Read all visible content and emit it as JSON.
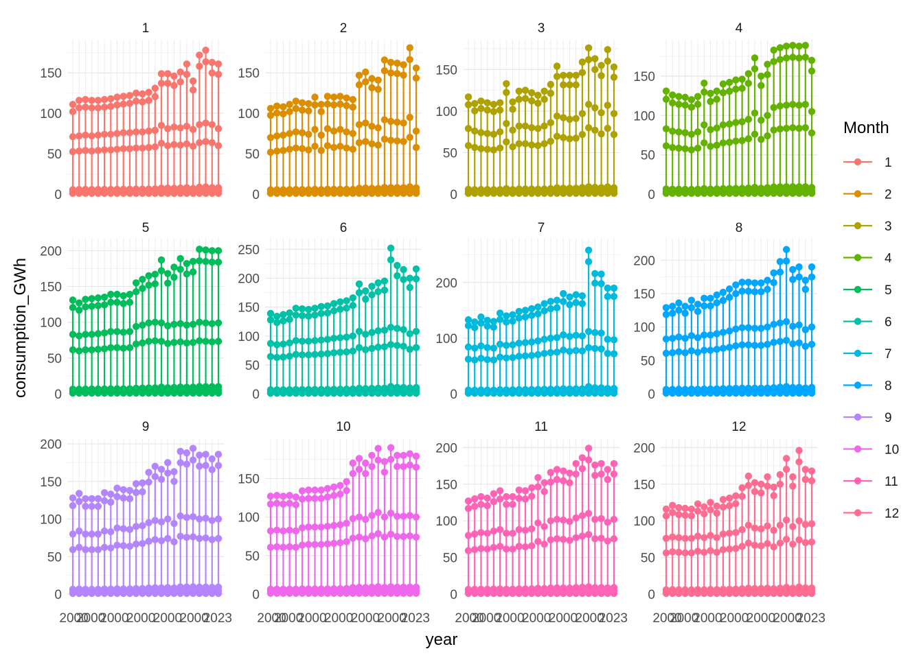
{
  "chart_data": {
    "type": "line",
    "layout": "faceted 3x4 (one panel per month)",
    "xlabel": "year",
    "ylabel": "consumption_GWh",
    "x_tick_labels": [
      "2000",
      "2023"
    ],
    "x_range": [
      2000,
      2023
    ],
    "x_years": [
      2000,
      2001,
      2002,
      2003,
      2004,
      2005,
      2006,
      2007,
      2008,
      2009,
      2010,
      2011,
      2012,
      2013,
      2014,
      2015,
      2016,
      2017,
      2018,
      2019,
      2020,
      2021,
      2022,
      2023
    ],
    "legend": {
      "title": "Month",
      "position": "right"
    },
    "colors": [
      "#F8766D",
      "#DB8E00",
      "#AEA200",
      "#64B200",
      "#00BD5C",
      "#00C1A7",
      "#00BADE",
      "#00A6FF",
      "#B385FF",
      "#EF67EB",
      "#FF63B6",
      "#FF6C91"
    ],
    "panels": [
      {
        "title": "1",
        "ylim": [
          0,
          185
        ],
        "yticks": [
          0,
          50,
          100,
          150
        ],
        "top": [
          111,
          116,
          117,
          116,
          116,
          117,
          118,
          120,
          121,
          122,
          125,
          124,
          126,
          131,
          149,
          149,
          146,
          151,
          161,
          140,
          172,
          178,
          163,
          161
        ],
        "mid": [
          71,
          72,
          73,
          72,
          73,
          74,
          74,
          75,
          76,
          76,
          77,
          77,
          78,
          79,
          85,
          81,
          83,
          82,
          84,
          80,
          86,
          88,
          86,
          81
        ]
      },
      {
        "title": "2",
        "ylim": [
          0,
          185
        ],
        "yticks": [
          0,
          50,
          100,
          150
        ],
        "top": [
          106,
          109,
          108,
          111,
          115,
          113,
          112,
          120,
          111,
          121,
          120,
          121,
          119,
          117,
          147,
          151,
          143,
          141,
          166,
          163,
          162,
          160,
          181,
          156
        ],
        "mid": [
          70,
          72,
          73,
          75,
          77,
          76,
          74,
          80,
          73,
          81,
          78,
          80,
          77,
          75,
          86,
          88,
          84,
          82,
          92,
          90,
          89,
          88,
          95,
          78
        ]
      },
      {
        "title": "3",
        "ylim": [
          0,
          180
        ],
        "yticks": [
          0,
          50,
          100,
          150
        ],
        "top": [
          117,
          109,
          112,
          110,
          108,
          110,
          133,
          111,
          124,
          125,
          122,
          119,
          124,
          132,
          154,
          143,
          143,
          143,
          159,
          176,
          163,
          155,
          174,
          153
        ],
        "mid": [
          79,
          76,
          74,
          73,
          72,
          75,
          85,
          77,
          82,
          82,
          80,
          79,
          82,
          86,
          94,
          92,
          90,
          91,
          97,
          108,
          104,
          98,
          107,
          97
        ]
      },
      {
        "title": "4",
        "ylim": [
          0,
          190
        ],
        "yticks": [
          0,
          50,
          100,
          150
        ],
        "top": [
          131,
          126,
          124,
          123,
          120,
          124,
          141,
          128,
          131,
          140,
          142,
          145,
          146,
          153,
          173,
          150,
          165,
          183,
          186,
          188,
          189,
          188,
          189,
          170
        ],
        "mid": [
          83,
          80,
          79,
          78,
          76,
          79,
          88,
          82,
          84,
          88,
          89,
          91,
          92,
          95,
          103,
          94,
          100,
          110,
          112,
          113,
          114,
          113,
          114,
          105
        ]
      },
      {
        "title": "5",
        "ylim": [
          0,
          210
        ],
        "yticks": [
          0,
          50,
          100,
          150,
          200
        ],
        "top": [
          131,
          127,
          132,
          133,
          134,
          135,
          139,
          139,
          137,
          139,
          155,
          160,
          165,
          167,
          187,
          168,
          177,
          189,
          182,
          185,
          202,
          201,
          200,
          200
        ],
        "mid": [
          83,
          81,
          83,
          83,
          84,
          85,
          87,
          87,
          86,
          87,
          94,
          96,
          99,
          100,
          99,
          95,
          97,
          98,
          96,
          97,
          100,
          99,
          98,
          99
        ]
      },
      {
        "title": "6",
        "ylim": [
          0,
          260
        ],
        "yticks": [
          0,
          50,
          100,
          150,
          200,
          250
        ],
        "top": [
          139,
          134,
          137,
          140,
          148,
          147,
          146,
          148,
          151,
          152,
          156,
          159,
          161,
          166,
          190,
          178,
          186,
          192,
          195,
          252,
          222,
          215,
          200,
          216
        ],
        "mid": [
          87,
          85,
          86,
          88,
          92,
          91,
          91,
          92,
          93,
          94,
          96,
          97,
          98,
          100,
          108,
          103,
          106,
          109,
          110,
          115,
          113,
          111,
          104,
          108
        ]
      },
      {
        "title": "7",
        "ylim": [
          0,
          270
        ],
        "yticks": [
          0,
          100,
          200
        ],
        "top": [
          133,
          129,
          138,
          132,
          130,
          145,
          140,
          142,
          148,
          150,
          153,
          156,
          162,
          166,
          168,
          180,
          174,
          178,
          176,
          258,
          216,
          215,
          190,
          190
        ],
        "mid": [
          84,
          82,
          86,
          83,
          82,
          89,
          87,
          88,
          91,
          92,
          93,
          95,
          98,
          100,
          101,
          106,
          103,
          105,
          104,
          112,
          110,
          109,
          98,
          97
        ]
      },
      {
        "title": "8",
        "ylim": [
          0,
          225
        ],
        "yticks": [
          0,
          50,
          100,
          150,
          200
        ],
        "top": [
          129,
          131,
          136,
          131,
          140,
          134,
          143,
          143,
          148,
          152,
          157,
          163,
          167,
          167,
          166,
          166,
          170,
          181,
          198,
          216,
          186,
          190,
          170,
          190
        ],
        "mid": [
          82,
          83,
          85,
          83,
          87,
          84,
          88,
          88,
          90,
          92,
          94,
          97,
          99,
          99,
          98,
          98,
          100,
          104,
          106,
          108,
          101,
          103,
          96,
          100
        ]
      },
      {
        "title": "9",
        "ylim": [
          0,
          200
        ],
        "yticks": [
          0,
          50,
          100,
          150,
          200
        ],
        "top": [
          128,
          134,
          127,
          127,
          127,
          135,
          133,
          141,
          139,
          138,
          147,
          148,
          162,
          170,
          166,
          175,
          163,
          190,
          188,
          194,
          185,
          186,
          180,
          186
        ],
        "mid": [
          80,
          84,
          80,
          80,
          80,
          84,
          83,
          88,
          87,
          86,
          90,
          91,
          95,
          98,
          96,
          100,
          94,
          104,
          102,
          103,
          100,
          101,
          98,
          100
        ]
      },
      {
        "title": "10",
        "ylim": [
          0,
          195
        ],
        "yticks": [
          0,
          50,
          100,
          150
        ],
        "top": [
          127,
          128,
          127,
          128,
          126,
          134,
          135,
          135,
          135,
          137,
          139,
          141,
          146,
          170,
          176,
          170,
          180,
          189,
          172,
          190,
          180,
          180,
          182,
          179
        ],
        "mid": [
          82,
          83,
          82,
          83,
          82,
          86,
          87,
          87,
          87,
          88,
          89,
          90,
          92,
          98,
          100,
          97,
          102,
          106,
          100,
          105,
          101,
          101,
          102,
          100
        ]
      },
      {
        "title": "11",
        "ylim": [
          0,
          205
        ],
        "yticks": [
          0,
          50,
          100,
          150,
          200
        ],
        "top": [
          127,
          130,
          133,
          131,
          137,
          141,
          133,
          133,
          142,
          141,
          145,
          159,
          152,
          166,
          170,
          168,
          165,
          178,
          186,
          199,
          176,
          178,
          170,
          178
        ],
        "mid": [
          80,
          82,
          84,
          83,
          86,
          88,
          83,
          83,
          88,
          87,
          89,
          97,
          92,
          100,
          102,
          101,
          99,
          104,
          107,
          110,
          102,
          103,
          98,
          102
        ]
      },
      {
        "title": "12",
        "ylim": [
          0,
          205
        ],
        "yticks": [
          0,
          50,
          100,
          150,
          200
        ],
        "top": [
          116,
          121,
          118,
          117,
          116,
          123,
          119,
          125,
          120,
          129,
          131,
          134,
          145,
          161,
          152,
          150,
          160,
          146,
          163,
          185,
          160,
          196,
          170,
          168
        ],
        "mid": [
          76,
          78,
          77,
          76,
          76,
          79,
          77,
          80,
          77,
          82,
          83,
          84,
          88,
          94,
          90,
          89,
          93,
          87,
          94,
          101,
          92,
          100,
          95,
          96
        ]
      }
    ]
  }
}
